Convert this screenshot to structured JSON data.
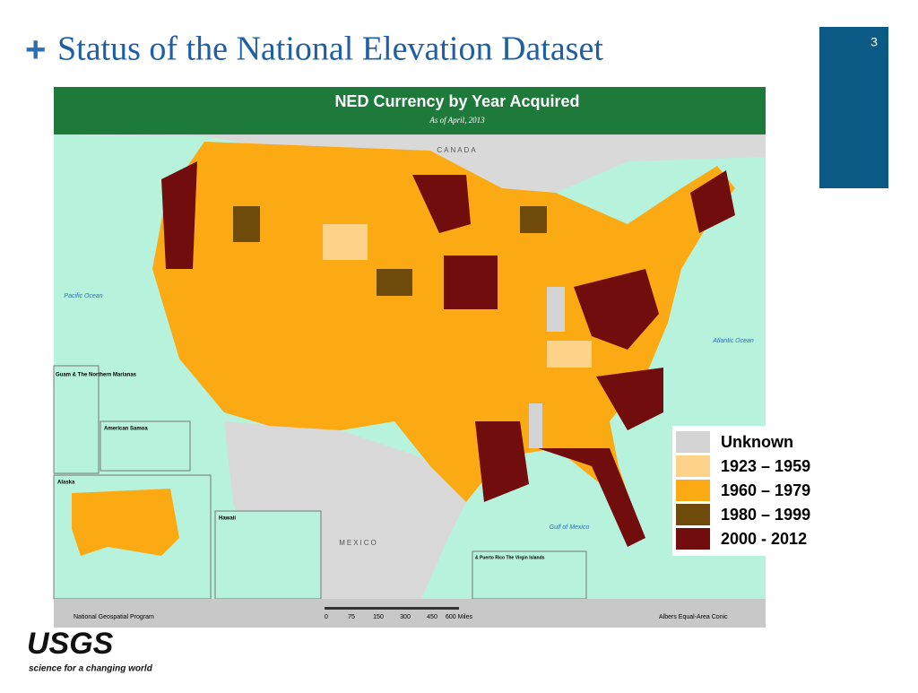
{
  "slide": {
    "bullet": "+",
    "title": "Status of the National Elevation Dataset",
    "page_number": "3"
  },
  "map": {
    "title": "NED Currency by Year Acquired",
    "subtitle": "As of April, 2013",
    "labels": {
      "canada": "CANADA",
      "mexico": "MEXICO",
      "pacific": "Pacific Ocean",
      "atlantic": "Atlantic Ocean",
      "gulf": "Gulf of Mexico"
    },
    "insets": {
      "guam": "Guam & The Northern Marianas",
      "samoa": "American Samoa",
      "alaska": "Alaska",
      "hawaii": "Hawaii",
      "puerto_rico": "& Puerto Rico The Virgin Islands"
    },
    "footer": {
      "left": "National Geospatial Program",
      "scale": [
        "0",
        "75",
        "150",
        "300",
        "450",
        "600 Miles"
      ],
      "right": "Albers Equal-Area Conic"
    },
    "legend": [
      {
        "label": "Unknown",
        "color": "#d4d4d4"
      },
      {
        "label": "1923 – 1959",
        "color": "#fdd38a"
      },
      {
        "label": "1960 – 1979",
        "color": "#fcaa14"
      },
      {
        "label": "1980 – 1999",
        "color": "#6e4a0b"
      },
      {
        "label": "2000 - 2012",
        "color": "#720d0d"
      }
    ]
  },
  "logo": {
    "name": "USGS",
    "tagline": "science for a changing world"
  }
}
